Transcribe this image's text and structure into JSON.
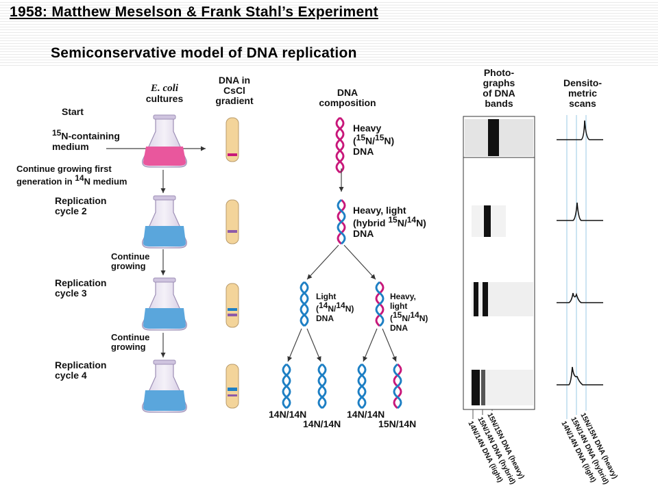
{
  "header": {
    "title": "1958: Matthew Meselson & Frank Stahl’s Experiment",
    "subtitle": "Semiconservative model of DNA replication"
  },
  "columns": {
    "ecoli_italic": "E. coli",
    "ecoli_rest": "cultures",
    "gradient": [
      "DNA in",
      "CsCl",
      "gradient"
    ],
    "composition": [
      "DNA",
      "composition"
    ],
    "photos": [
      "Photo-",
      "graphs",
      "of DNA",
      "bands"
    ],
    "scans": [
      "Densito-",
      "metric",
      "scans"
    ]
  },
  "steps": {
    "start": "Start",
    "medium": [
      "N-containing",
      "medium"
    ],
    "medium_sup": "15",
    "continue_first": [
      "Continue growing first",
      "generation in ",
      " medium"
    ],
    "continue_first_sup": "14",
    "continue_first_tail": "N",
    "cycle2": [
      "Replication",
      "cycle 2"
    ],
    "continue_a": [
      "Continue",
      "growing"
    ],
    "cycle3": [
      "Replication",
      "cycle 3"
    ],
    "continue_b": [
      "Continue",
      "growing"
    ],
    "cycle4": [
      "Replication",
      "cycle 4"
    ]
  },
  "dna_labels": {
    "heavy": [
      "Heavy",
      "(",
      "N/",
      "N)",
      "DNA"
    ],
    "heavy_sup": [
      "15",
      "15"
    ],
    "hybrid": [
      "Heavy, light",
      "(hybrid ",
      "N/",
      "N)",
      "DNA"
    ],
    "hybrid_sup": [
      "15",
      "14"
    ],
    "light": [
      "Light",
      "(",
      "N/",
      "N)",
      "DNA"
    ],
    "light_sup": [
      "14",
      "14"
    ],
    "heavy_light": [
      "Heavy,",
      "light",
      "(",
      "N/",
      "N)",
      "DNA"
    ],
    "heavy_light_sup": [
      "15",
      "14"
    ],
    "bottom": [
      "14N/14N",
      "14N/14N",
      "14N/14N",
      "15N/14N"
    ]
  },
  "band_axis_labels": [
    "14N/14N DNA (light)",
    "15N/14N DNA (hybrid)",
    "15N/15N DNA (heavy)"
  ],
  "scan_axis_labels": [
    "14N/14N DNA (light)",
    "15N/14N DNA (hybrid)",
    "15N/15N DNA (heavy)"
  ],
  "colors": {
    "heavy_strand": "#c8177a",
    "light_strand": "#1d7fc4",
    "culture_pink": "#e9579d",
    "culture_blue": "#5aa6dc",
    "tube": "#f3d49a"
  }
}
